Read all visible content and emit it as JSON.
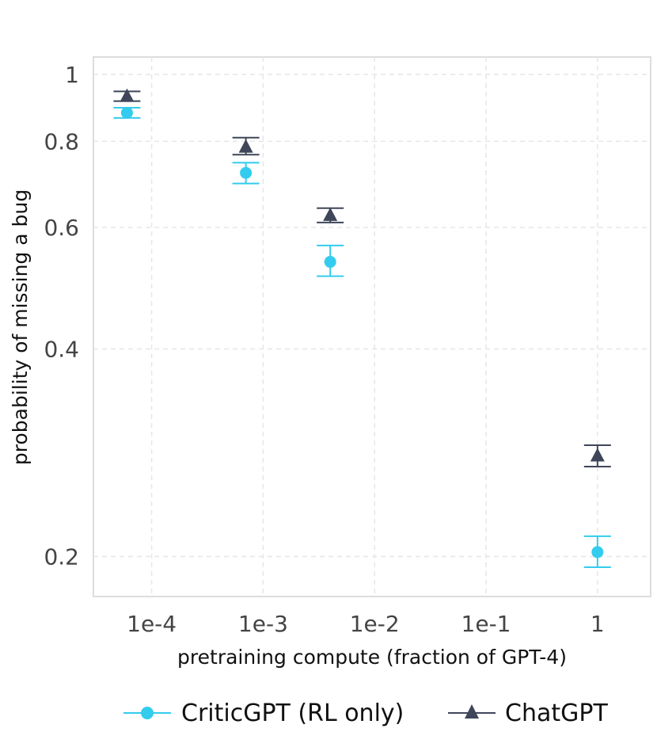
{
  "chart_data": {
    "type": "scatter",
    "title": "",
    "xlabel": "pretraining compute (fraction of GPT-4)",
    "ylabel": "probability of missing a bug",
    "x_scale": "log",
    "y_scale": "log",
    "xlim": [
      3e-05,
      3
    ],
    "ylim": [
      0.175,
      1.06
    ],
    "x_ticks": [
      0.0001,
      0.001,
      0.01,
      0.1,
      1
    ],
    "x_tick_labels": [
      "1e-4",
      "1e-3",
      "1e-2",
      "1e-1",
      "1"
    ],
    "y_ticks": [
      0.2,
      0.4,
      0.6,
      0.8,
      1
    ],
    "y_tick_labels": [
      "0.2",
      "0.4",
      "0.6",
      "0.8",
      "1"
    ],
    "grid": true,
    "legend_position": "bottom-center",
    "series": [
      {
        "name": "CriticGPT (RL only)",
        "color": "#33ccee",
        "marker": "circle",
        "points": [
          {
            "x": 6e-05,
            "y": 0.88,
            "lo": 0.865,
            "hi": 0.895
          },
          {
            "x": 0.0007,
            "y": 0.72,
            "lo": 0.695,
            "hi": 0.745
          },
          {
            "x": 0.004,
            "y": 0.535,
            "lo": 0.51,
            "hi": 0.565
          },
          {
            "x": 1,
            "y": 0.203,
            "lo": 0.193,
            "hi": 0.214
          }
        ]
      },
      {
        "name": "ChatGPT",
        "color": "#3f4659",
        "marker": "triangle",
        "points": [
          {
            "x": 6e-05,
            "y": 0.93,
            "lo": 0.915,
            "hi": 0.945
          },
          {
            "x": 0.0007,
            "y": 0.785,
            "lo": 0.765,
            "hi": 0.81
          },
          {
            "x": 0.004,
            "y": 0.625,
            "lo": 0.61,
            "hi": 0.64
          },
          {
            "x": 1,
            "y": 0.28,
            "lo": 0.27,
            "hi": 0.29
          }
        ]
      }
    ]
  }
}
